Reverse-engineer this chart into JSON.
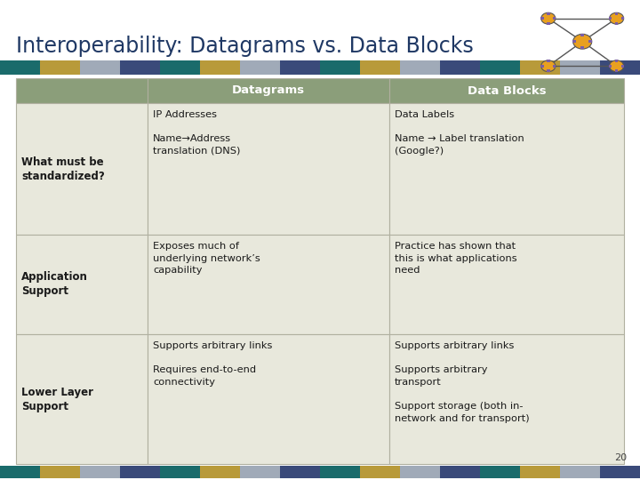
{
  "title": "Interoperability: Datagrams vs. Data Blocks",
  "title_fontsize": 17,
  "title_color": "#1F3864",
  "bg_color": "#FFFFFF",
  "header_bg": "#8B9E7A",
  "header_text_color": "#FFFFFF",
  "row_bg": "#E8E8DC",
  "cell_edge_color": "#B0B0A0",
  "stripe_colors": [
    "#1A6B6B",
    "#B89A3A",
    "#A0AAB8",
    "#3A4A7A",
    "#1A6B6B",
    "#B89A3A",
    "#A0AAB8",
    "#3A4A7A",
    "#1A6B6B",
    "#B89A3A",
    "#A0AAB8",
    "#3A4A7A",
    "#1A6B6B",
    "#B89A3A",
    "#A0AAB8",
    "#3A4A7A"
  ],
  "page_number": "20",
  "columns": [
    "",
    "Datagrams",
    "Data Blocks"
  ],
  "rows": [
    {
      "row_label": "What must be\nstandardized?",
      "col1": "IP Addresses\n\nName→Address\ntranslation (DNS)",
      "col2": "Data Labels\n\nName → Label translation\n(Google?)"
    },
    {
      "row_label": "Application\nSupport",
      "col1": "Exposes much of\nunderlying network’s\ncapability",
      "col2": "Practice has shown that\nthis is what applications\nneed"
    },
    {
      "row_label": "Lower Layer\nSupport",
      "col1": "Supports arbitrary links\n\nRequires end-to-end\nconnectivity",
      "col2": "Supports arbitrary links\n\nSupports arbitrary\ntransport\n\nSupport storage (both in-\nnetwork and for transport)"
    }
  ]
}
